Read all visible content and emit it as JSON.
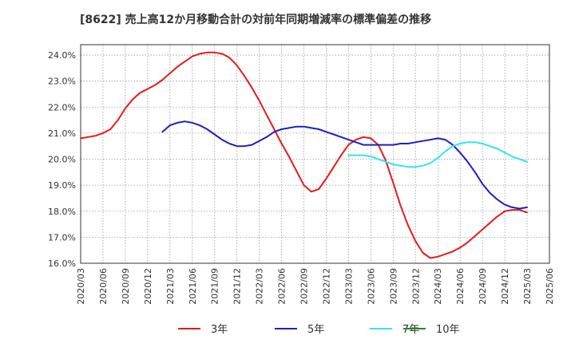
{
  "chart_data": {
    "type": "line",
    "title": "[8622]  売上高12か月移動合計の対前年同期増減率の標準偏差の推移",
    "xlabel": "",
    "ylabel": "",
    "ylim": [
      16.0,
      24.4
    ],
    "y_ticks": [
      "16.0%",
      "17.0%",
      "18.0%",
      "19.0%",
      "20.0%",
      "21.0%",
      "22.0%",
      "23.0%",
      "24.0%"
    ],
    "x_ticks": [
      "2020/03",
      "2020/06",
      "2020/09",
      "2020/12",
      "2021/03",
      "2021/06",
      "2021/09",
      "2021/12",
      "2022/03",
      "2022/06",
      "2022/09",
      "2022/12",
      "2023/03",
      "2023/06",
      "2023/09",
      "2023/12",
      "2024/03",
      "2024/06",
      "2024/09",
      "2024/12",
      "2025/03",
      "2025/06"
    ],
    "grid": true,
    "legend_position": "bottom",
    "series": [
      {
        "name": "3年",
        "color": "#e41a1c",
        "points": [
          [
            "2020/03",
            20.8
          ],
          [
            "2020/04",
            20.85
          ],
          [
            "2020/05",
            20.9
          ],
          [
            "2020/06",
            21.0
          ],
          [
            "2020/07",
            21.15
          ],
          [
            "2020/08",
            21.5
          ],
          [
            "2020/09",
            21.95
          ],
          [
            "2020/10",
            22.3
          ],
          [
            "2020/11",
            22.55
          ],
          [
            "2020/12",
            22.7
          ],
          [
            "2021/01",
            22.85
          ],
          [
            "2021/02",
            23.05
          ],
          [
            "2021/03",
            23.3
          ],
          [
            "2021/04",
            23.55
          ],
          [
            "2021/05",
            23.75
          ],
          [
            "2021/06",
            23.95
          ],
          [
            "2021/07",
            24.05
          ],
          [
            "2021/08",
            24.1
          ],
          [
            "2021/09",
            24.1
          ],
          [
            "2021/10",
            24.05
          ],
          [
            "2021/11",
            23.9
          ],
          [
            "2021/12",
            23.6
          ],
          [
            "2022/01",
            23.2
          ],
          [
            "2022/02",
            22.75
          ],
          [
            "2022/03",
            22.25
          ],
          [
            "2022/04",
            21.7
          ],
          [
            "2022/05",
            21.15
          ],
          [
            "2022/06",
            20.6
          ],
          [
            "2022/07",
            20.1
          ],
          [
            "2022/08",
            19.55
          ],
          [
            "2022/09",
            19.0
          ],
          [
            "2022/10",
            18.75
          ],
          [
            "2022/11",
            18.85
          ],
          [
            "2022/12",
            19.25
          ],
          [
            "2023/01",
            19.7
          ],
          [
            "2023/02",
            20.15
          ],
          [
            "2023/03",
            20.55
          ],
          [
            "2023/04",
            20.75
          ],
          [
            "2023/05",
            20.85
          ],
          [
            "2023/06",
            20.8
          ],
          [
            "2023/07",
            20.55
          ],
          [
            "2023/08",
            19.95
          ],
          [
            "2023/09",
            19.1
          ],
          [
            "2023/10",
            18.2
          ],
          [
            "2023/11",
            17.45
          ],
          [
            "2023/12",
            16.85
          ],
          [
            "2024/01",
            16.4
          ],
          [
            "2024/02",
            16.2
          ],
          [
            "2024/03",
            16.25
          ],
          [
            "2024/04",
            16.35
          ],
          [
            "2024/05",
            16.45
          ],
          [
            "2024/06",
            16.6
          ],
          [
            "2024/07",
            16.8
          ],
          [
            "2024/08",
            17.05
          ],
          [
            "2024/09",
            17.3
          ],
          [
            "2024/10",
            17.55
          ],
          [
            "2024/11",
            17.8
          ],
          [
            "2024/12",
            18.0
          ],
          [
            "2025/01",
            18.05
          ],
          [
            "2025/02",
            18.05
          ],
          [
            "2025/03",
            17.95
          ]
        ]
      },
      {
        "name": "5年",
        "color": "#1f1fbf",
        "points": [
          [
            "2021/02",
            21.05
          ],
          [
            "2021/03",
            21.3
          ],
          [
            "2021/04",
            21.4
          ],
          [
            "2021/05",
            21.45
          ],
          [
            "2021/06",
            21.4
          ],
          [
            "2021/07",
            21.3
          ],
          [
            "2021/08",
            21.15
          ],
          [
            "2021/09",
            20.95
          ],
          [
            "2021/10",
            20.75
          ],
          [
            "2021/11",
            20.6
          ],
          [
            "2021/12",
            20.5
          ],
          [
            "2022/01",
            20.5
          ],
          [
            "2022/02",
            20.55
          ],
          [
            "2022/03",
            20.7
          ],
          [
            "2022/04",
            20.85
          ],
          [
            "2022/05",
            21.05
          ],
          [
            "2022/06",
            21.15
          ],
          [
            "2022/07",
            21.2
          ],
          [
            "2022/08",
            21.25
          ],
          [
            "2022/09",
            21.25
          ],
          [
            "2022/10",
            21.2
          ],
          [
            "2022/11",
            21.15
          ],
          [
            "2022/12",
            21.05
          ],
          [
            "2023/01",
            20.95
          ],
          [
            "2023/02",
            20.85
          ],
          [
            "2023/03",
            20.75
          ],
          [
            "2023/04",
            20.65
          ],
          [
            "2023/05",
            20.55
          ],
          [
            "2023/06",
            20.55
          ],
          [
            "2023/07",
            20.55
          ],
          [
            "2023/08",
            20.55
          ],
          [
            "2023/09",
            20.55
          ],
          [
            "2023/10",
            20.6
          ],
          [
            "2023/11",
            20.6
          ],
          [
            "2023/12",
            20.65
          ],
          [
            "2024/01",
            20.7
          ],
          [
            "2024/02",
            20.75
          ],
          [
            "2024/03",
            20.8
          ],
          [
            "2024/04",
            20.75
          ],
          [
            "2024/05",
            20.55
          ],
          [
            "2024/06",
            20.25
          ],
          [
            "2024/07",
            19.9
          ],
          [
            "2024/08",
            19.5
          ],
          [
            "2024/09",
            19.05
          ],
          [
            "2024/10",
            18.7
          ],
          [
            "2024/11",
            18.45
          ],
          [
            "2024/12",
            18.25
          ],
          [
            "2025/01",
            18.15
          ],
          [
            "2025/02",
            18.1
          ],
          [
            "2025/03",
            18.15
          ]
        ]
      },
      {
        "name": "7年",
        "color": "#33e5f0",
        "points": [
          [
            "2023/03",
            20.15
          ],
          [
            "2023/04",
            20.15
          ],
          [
            "2023/05",
            20.15
          ],
          [
            "2023/06",
            20.1
          ],
          [
            "2023/07",
            20.0
          ],
          [
            "2023/08",
            19.9
          ],
          [
            "2023/09",
            19.8
          ],
          [
            "2023/10",
            19.75
          ],
          [
            "2023/11",
            19.7
          ],
          [
            "2023/12",
            19.7
          ],
          [
            "2024/01",
            19.75
          ],
          [
            "2024/02",
            19.85
          ],
          [
            "2024/03",
            20.05
          ],
          [
            "2024/04",
            20.3
          ],
          [
            "2024/05",
            20.5
          ],
          [
            "2024/06",
            20.6
          ],
          [
            "2024/07",
            20.65
          ],
          [
            "2024/08",
            20.65
          ],
          [
            "2024/09",
            20.6
          ],
          [
            "2024/10",
            20.5
          ],
          [
            "2024/11",
            20.4
          ],
          [
            "2024/12",
            20.25
          ],
          [
            "2025/01",
            20.1
          ],
          [
            "2025/02",
            20.0
          ],
          [
            "2025/03",
            19.9
          ]
        ]
      },
      {
        "name": "10年",
        "color": "#228b22",
        "points": []
      }
    ]
  }
}
